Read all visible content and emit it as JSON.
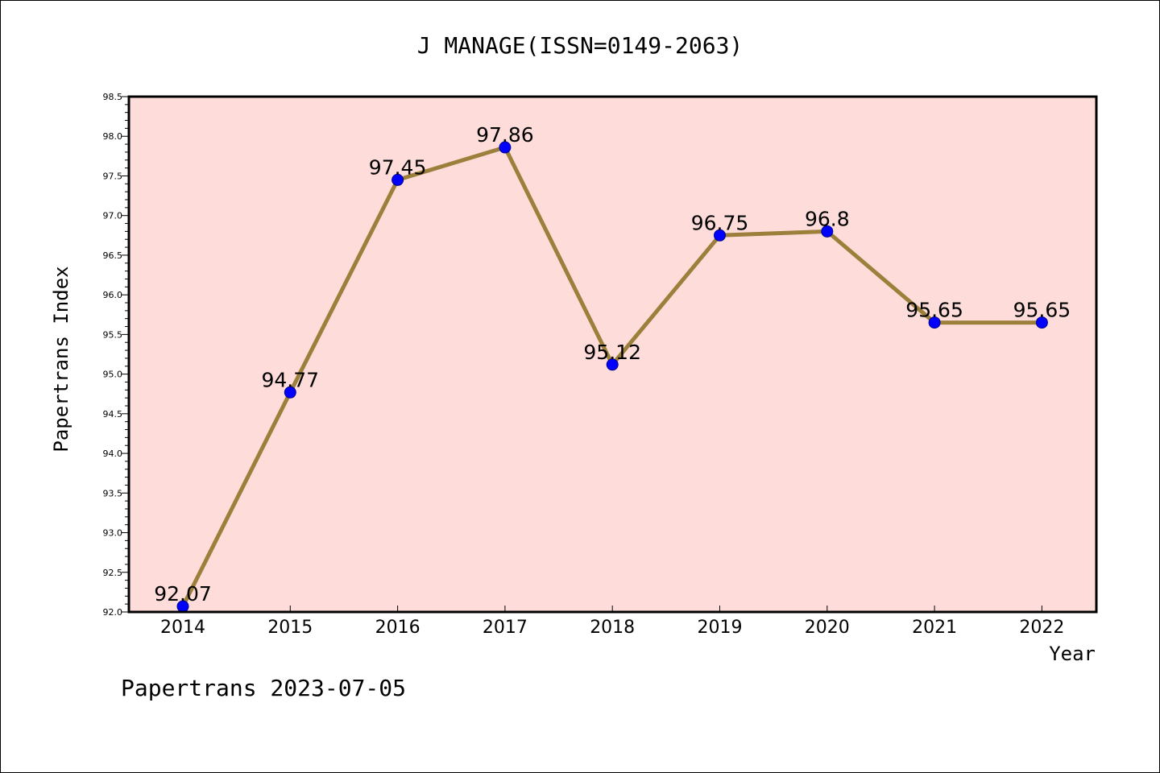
{
  "chart_data": {
    "type": "line",
    "title": "J MANAGE(ISSN=0149-2063)",
    "xlabel": "Year",
    "ylabel": "Papertrans Index",
    "categories": [
      "2014",
      "2015",
      "2016",
      "2017",
      "2018",
      "2019",
      "2020",
      "2021",
      "2022"
    ],
    "series": [
      {
        "values": [
          92.07,
          94.77,
          97.45,
          97.86,
          95.12,
          96.75,
          96.8,
          95.65,
          95.65
        ],
        "labels": [
          "92.07",
          "94.77",
          "97.45",
          "97.86",
          "95.12",
          "96.75",
          "96.8",
          "95.65",
          "95.65"
        ]
      }
    ],
    "ylim": [
      92.0,
      98.5
    ],
    "yticks": [
      "92.0",
      "92.5",
      "93.0",
      "93.5",
      "94.0",
      "94.5",
      "95.0",
      "95.5",
      "96.0",
      "96.5",
      "97.0",
      "97.5",
      "98.0",
      "98.5"
    ],
    "grid": false,
    "legend": "none",
    "colors": {
      "plot_background": "#fddcd9",
      "line": "#9b7f3a",
      "marker": "#0000ff"
    }
  },
  "footer": {
    "source": "Papertrans 2023-07-05"
  }
}
